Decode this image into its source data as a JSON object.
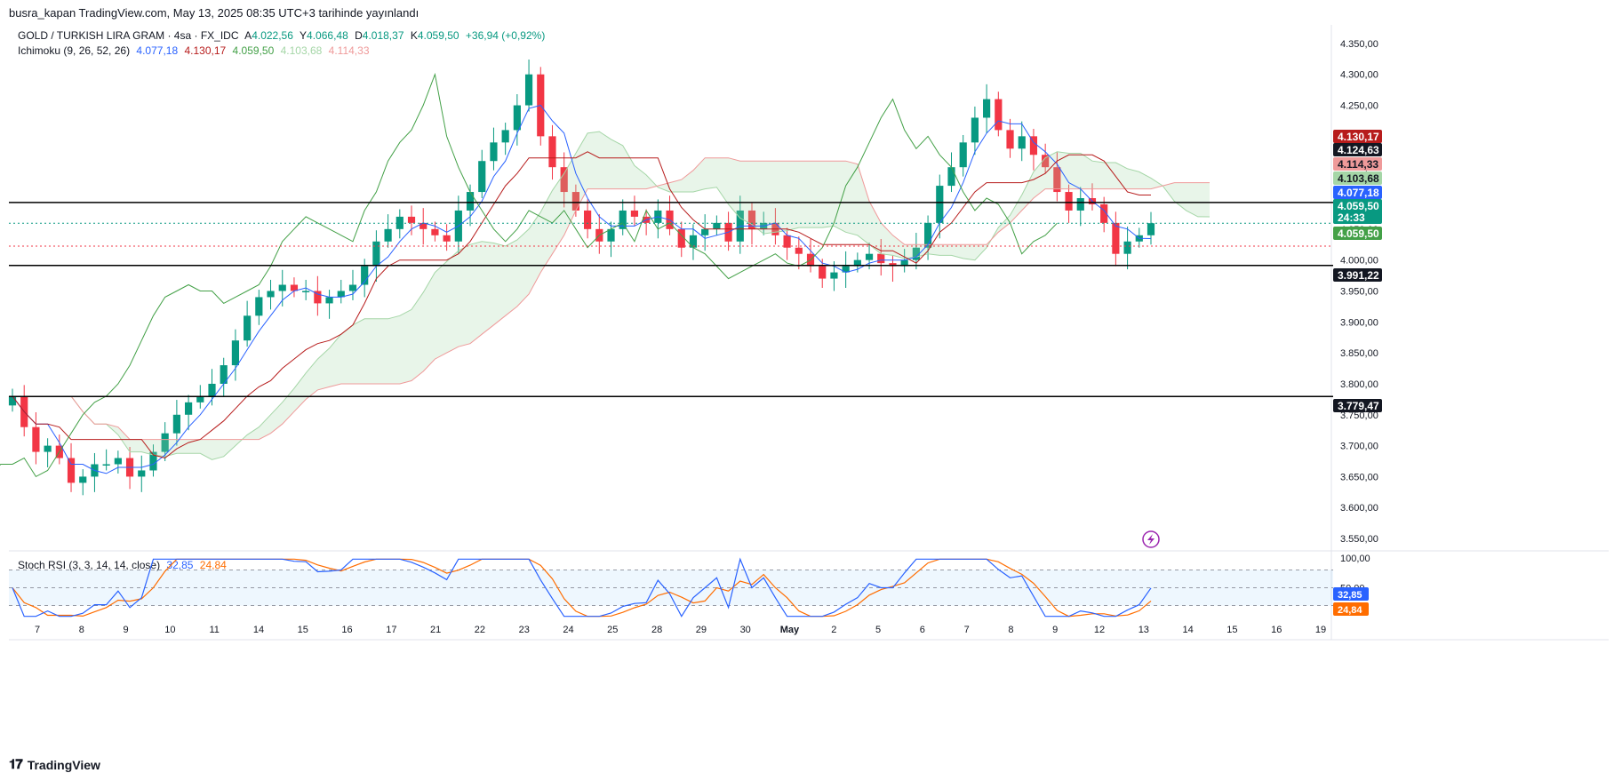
{
  "header": {
    "published": "busra_kapan TradingView.com, May 13, 2025 08:35 UTC+3 tarihinde yayınlandı"
  },
  "legend": {
    "symbol": "GOLD / TURKISH LIRA GRAM · 4sa · FX_IDC",
    "o_label": "A",
    "o": "4.022,56",
    "h_label": "Y",
    "h": "4.066,48",
    "l_label": "D",
    "l": "4.018,37",
    "c_label": "K",
    "c": "4.059,50",
    "change": "+36,94 (+0,92%)",
    "ichimoku_label": "Ichimoku (9, 26, 52, 26)",
    "ichimoku_values": [
      "4.077,18",
      "4.130,17",
      "4.059,50",
      "4.103,68",
      "4.114,33"
    ],
    "stoch_label": "Stoch RSI (3, 3, 14, 14, close)",
    "stoch_k": "32,85",
    "stoch_d": "24,84"
  },
  "footer": {
    "brand": "TradingView"
  },
  "colors": {
    "up": "#089981",
    "down": "#f23645",
    "tenkan": "#2962ff",
    "kijun": "#b71c1c",
    "chikou": "#43a047",
    "span_a": "#a5d6a7",
    "span_b": "#ef9a9a",
    "stoch_k": "#2962ff",
    "stoch_d": "#ff6d00"
  },
  "chart_data": {
    "type": "candlestick",
    "yaxis": {
      "min": 3530,
      "max": 4380,
      "ticks": [
        4350,
        4300,
        4250,
        4200,
        4150,
        4100,
        4050,
        4000,
        3950,
        3900,
        3850,
        3800,
        3750,
        3700,
        3650,
        3600,
        3550
      ],
      "tick_labels": [
        "4.350,00",
        "4.300,00",
        "4.250,00",
        "4.200,00",
        "4.150,00",
        "4.100,00",
        "4.050,00",
        "4.000,00",
        "3.950,00",
        "3.900,00",
        "3.850,00",
        "3.800,00",
        "3.750,00",
        "3.700,00",
        "3.650,00",
        "3.600,00",
        "3.550,00"
      ]
    },
    "xaxis": {
      "labels": [
        "7",
        "8",
        "9",
        "10",
        "11",
        "14",
        "15",
        "16",
        "17",
        "21",
        "22",
        "23",
        "24",
        "25",
        "28",
        "29",
        "30",
        "May",
        "2",
        "5",
        "6",
        "7",
        "8",
        "9",
        "12",
        "13",
        "14",
        "15",
        "16",
        "19"
      ]
    },
    "horizontal_lines": [
      {
        "value": 4093,
        "label": "4.093,00"
      },
      {
        "value": 3991.22,
        "label": "3.991,22"
      },
      {
        "value": 3779.47,
        "label": "3.779,47"
      }
    ],
    "price_tags": [
      {
        "value": 4130.17,
        "label": "4.130,17",
        "color": "#b71c1c"
      },
      {
        "value": 4124.63,
        "label": "4.124,63",
        "color": "#131722"
      },
      {
        "value": 4114.33,
        "label": "4.114,33",
        "color": "#ef9a9a"
      },
      {
        "value": 4103.68,
        "label": "4.103,68",
        "color": "#a5d6a7"
      },
      {
        "value": 4077.18,
        "label": "4.077,18",
        "color": "#2962ff"
      },
      {
        "value": 4059.5,
        "label": "4.059,50",
        "countdown": "24:33",
        "color": "#089981"
      },
      {
        "value": 4059.5,
        "label": "4.059,50",
        "color": "#43a047"
      },
      {
        "value": 3991.22,
        "label": "3.991,22",
        "color": "#131722"
      },
      {
        "value": 3779.47,
        "label": "3.779,47",
        "color": "#131722"
      }
    ],
    "close_path": [
      3780,
      3730,
      3690,
      3700,
      3680,
      3640,
      3650,
      3670,
      3670,
      3680,
      3650,
      3660,
      3690,
      3720,
      3750,
      3770,
      3780,
      3800,
      3830,
      3870,
      3910,
      3940,
      3950,
      3960,
      3950,
      3950,
      3930,
      3940,
      3950,
      3960,
      3990,
      4030,
      4050,
      4070,
      4060,
      4050,
      4040,
      4030,
      4080,
      4110,
      4160,
      4190,
      4210,
      4250,
      4300,
      4200,
      4150,
      4110,
      4080,
      4050,
      4030,
      4050,
      4080,
      4070,
      4060,
      4080,
      4050,
      4020,
      4040,
      4050,
      4060,
      4030,
      4080,
      4050,
      4060,
      4040,
      4020,
      4010,
      3990,
      3970,
      3980,
      3990,
      4000,
      4010,
      3995,
      3990,
      4000,
      4020,
      4060,
      4120,
      4150,
      4190,
      4230,
      4260,
      4210,
      4180,
      4200,
      4170,
      4150,
      4110,
      4080,
      4100,
      4090,
      4060,
      4010,
      4030,
      4040,
      4059.5
    ],
    "stoch_rsi": {
      "ylim": [
        0,
        100
      ],
      "levels": [
        80,
        50,
        20
      ],
      "tick_labels": [
        "100,00",
        "50,00"
      ],
      "k_last": 32.85,
      "d_last": 24.84
    }
  }
}
